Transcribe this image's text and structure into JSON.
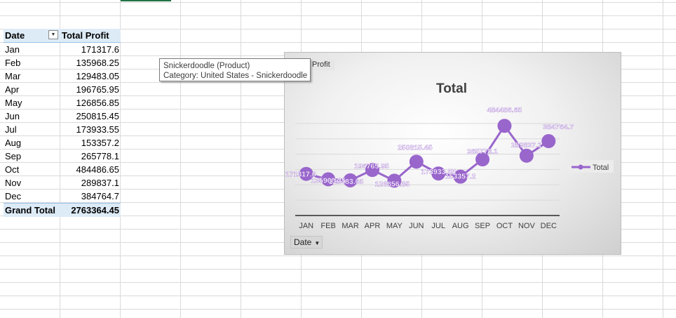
{
  "pivot": {
    "header": {
      "date": "Date",
      "total": "Total Profit",
      "filter_icon": "filter-dropdown-icon"
    },
    "rows": [
      {
        "month": "Jan",
        "value": "171317.6"
      },
      {
        "month": "Feb",
        "value": "135968.25"
      },
      {
        "month": "Mar",
        "value": "129483.05"
      },
      {
        "month": "Apr",
        "value": "196765.95"
      },
      {
        "month": "May",
        "value": "126856.85"
      },
      {
        "month": "Jun",
        "value": "250815.45"
      },
      {
        "month": "Jul",
        "value": "173933.55"
      },
      {
        "month": "Aug",
        "value": "153357.2"
      },
      {
        "month": "Sep",
        "value": "265778.1"
      },
      {
        "month": "Oct",
        "value": "484486.65"
      },
      {
        "month": "Nov",
        "value": "289837.1"
      },
      {
        "month": "Dec",
        "value": "384764.7"
      }
    ],
    "grand_total": {
      "label": "Grand Total",
      "value": "2763364.45"
    }
  },
  "tooltip": {
    "line1": "Snickerdoodle (Product)",
    "line2": "Category: United States - Snickerdoodle"
  },
  "chart": {
    "field_button": "Profit",
    "axis_field_button": "Date",
    "colors": {
      "series": "#9966cc",
      "label": "#ffffff",
      "axis": "#595959",
      "gridline": "#d9d9d9"
    }
  },
  "chart_data": {
    "type": "line",
    "title": "Total",
    "categories": [
      "JAN",
      "FEB",
      "MAR",
      "APR",
      "MAY",
      "JUN",
      "JUL",
      "AUG",
      "SEP",
      "OCT",
      "NOV",
      "DEC"
    ],
    "series": [
      {
        "name": "Total",
        "values": [
          171317.6,
          135968.25,
          129483.05,
          196765.95,
          126856.85,
          250815.45,
          173933.55,
          153357.2,
          265778.1,
          484486.65,
          289837.1,
          384764.7
        ]
      }
    ],
    "data_labels": [
      "171317.6",
      "135968.25",
      "129483.05",
      "196765.95",
      "126856.85",
      "250815.45",
      "173933.55",
      "153357.2",
      "265778.1",
      "484486.65",
      "289837.1",
      "384764.7"
    ],
    "ylim": [
      -100000,
      600000
    ],
    "legend": "right",
    "grid": true
  }
}
